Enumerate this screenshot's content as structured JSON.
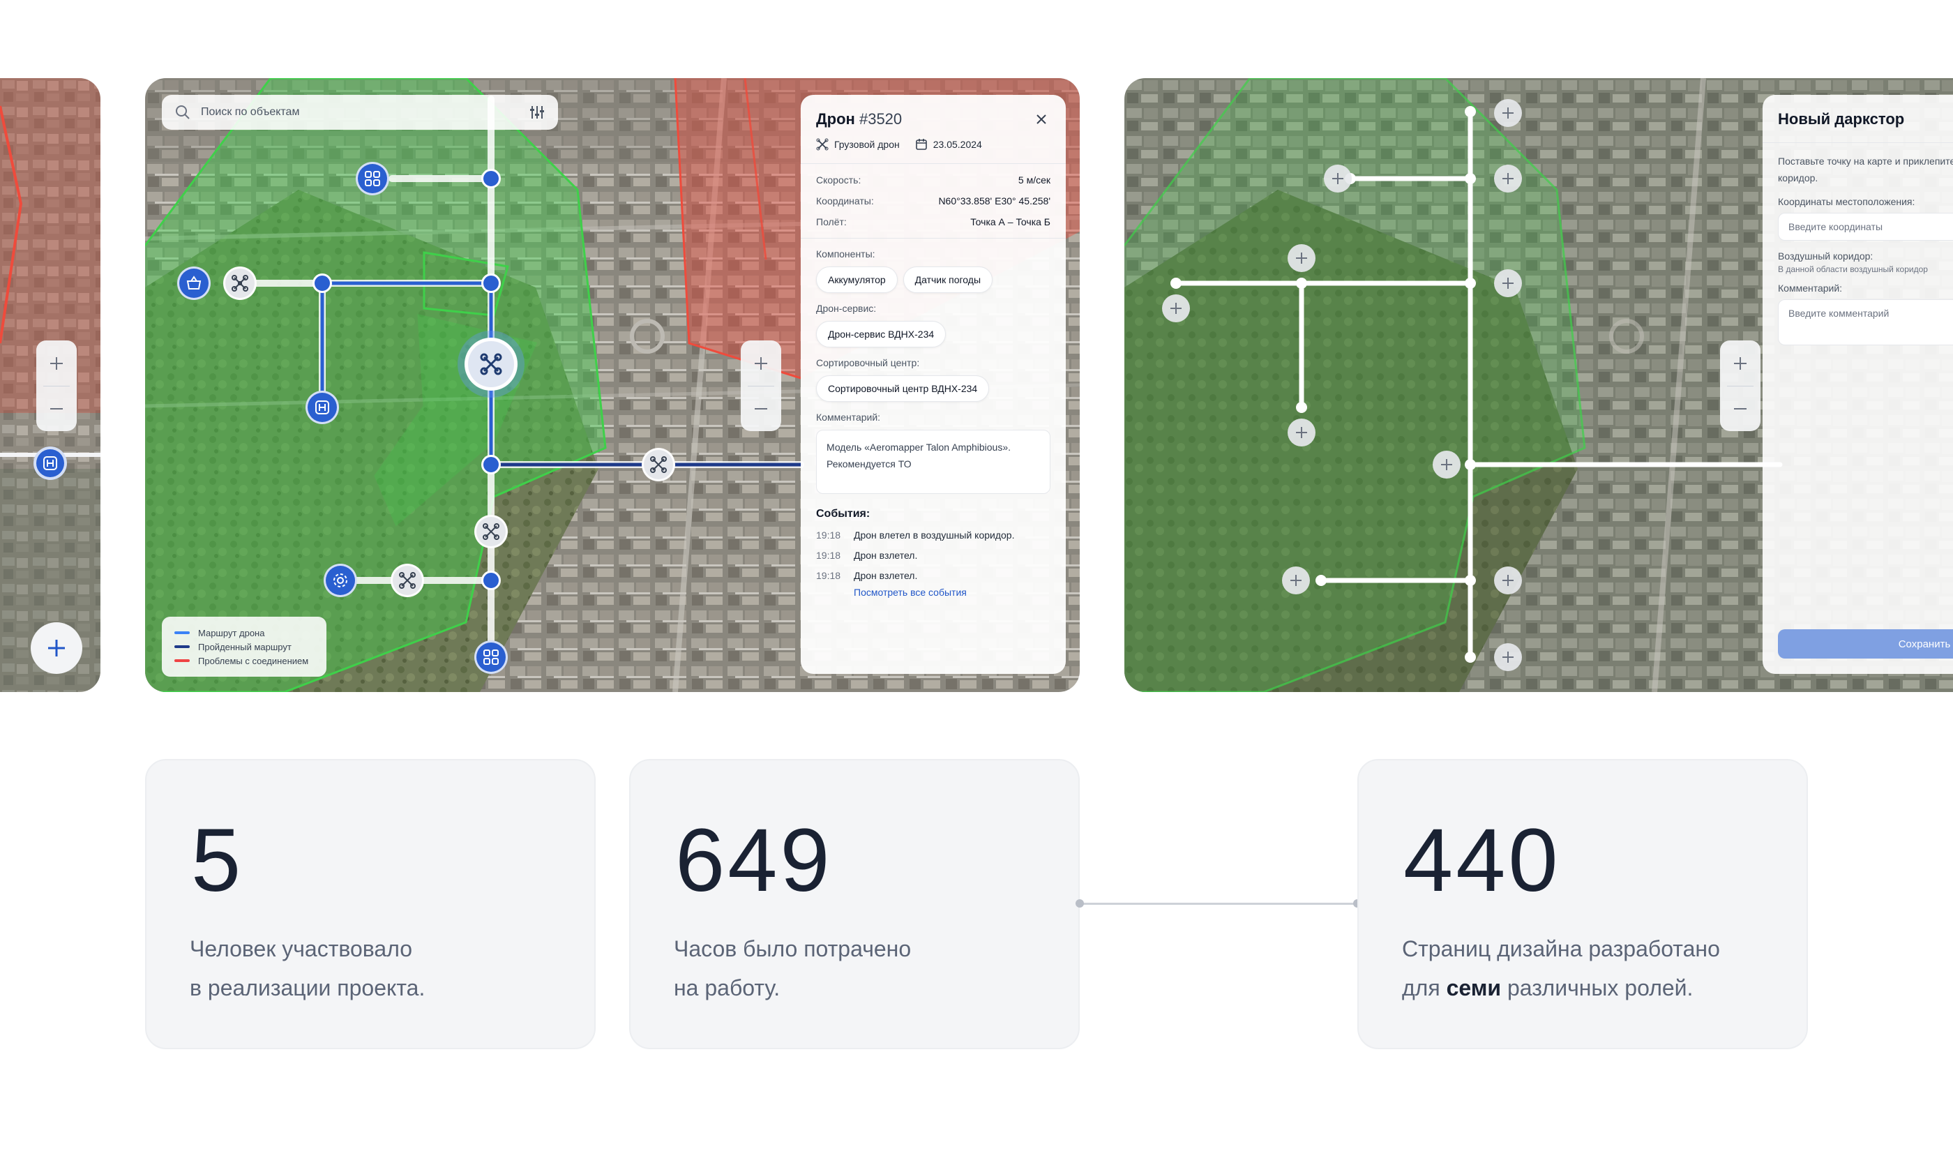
{
  "search": {
    "placeholder": "Поиск по объектам"
  },
  "legend": {
    "items": [
      {
        "label": "Маршрут дрона",
        "color": "#3b82f6"
      },
      {
        "label": "Пройденный маршрут",
        "color": "#1e3a8a"
      },
      {
        "label": "Проблемы с соединением",
        "color": "#ef4444"
      }
    ]
  },
  "drone_panel": {
    "title": "Дрон",
    "number": "#3520",
    "type": "Грузовой дрон",
    "date": "23.05.2024",
    "speed_label": "Скорость:",
    "speed": "5 м/сек",
    "coords_label": "Координаты:",
    "coords": "N60°33.858' E30° 45.258'",
    "flight_label": "Полёт:",
    "flight": "Точка А – Точка Б",
    "components_label": "Компоненты:",
    "components": [
      "Аккумулятор",
      "Датчик погоды"
    ],
    "service_label": "Дрон-сервис:",
    "service": "Дрон-сервис ВДНХ-234",
    "sorting_label": "Сортировочный центр:",
    "sorting": "Сортировочный центр ВДНХ-234",
    "comment_label": "Комментарий:",
    "comment": "Модель «Aeromapper Talon Amphibious». Рекомендуется ТО",
    "events_label": "События:",
    "events": [
      {
        "time": "19:18",
        "text": "Дрон влетел в воздушный коридор."
      },
      {
        "time": "19:18",
        "text": "Дрон взлетел."
      },
      {
        "time": "19:18",
        "text": "Дрон взлетел."
      }
    ],
    "events_link": "Посмотреть все события"
  },
  "new_panel": {
    "title": "Новый даркстор",
    "intro": "Поставьте точку на карте и приклепите к воздушный коридор.",
    "coords_label": "Координаты местоположения:",
    "coords_placeholder": "Введите координаты",
    "corridor_label": "Воздушный коридор:",
    "corridor_hint": "В данной области воздушный коридор",
    "comment_label": "Комментарий:",
    "comment_placeholder": "Введите комментарий",
    "save": "Сохранить"
  },
  "stats": [
    {
      "number": "5",
      "line1": "Человек участвовало",
      "line2": "в реализации проекта."
    },
    {
      "number": "649",
      "line1": "Часов было потрачено",
      "line2": "на работу."
    },
    {
      "number": "440",
      "line1": "Страниц дизайна разработано",
      "line2_pre": "для ",
      "line2_bold": "семи",
      "line2_post": " различных ролей."
    }
  ],
  "colors": {
    "route": "#2a5fd0",
    "zone_green": "#3fd04a",
    "zone_red": "#ef4b3c",
    "accent": "#2156c8"
  }
}
